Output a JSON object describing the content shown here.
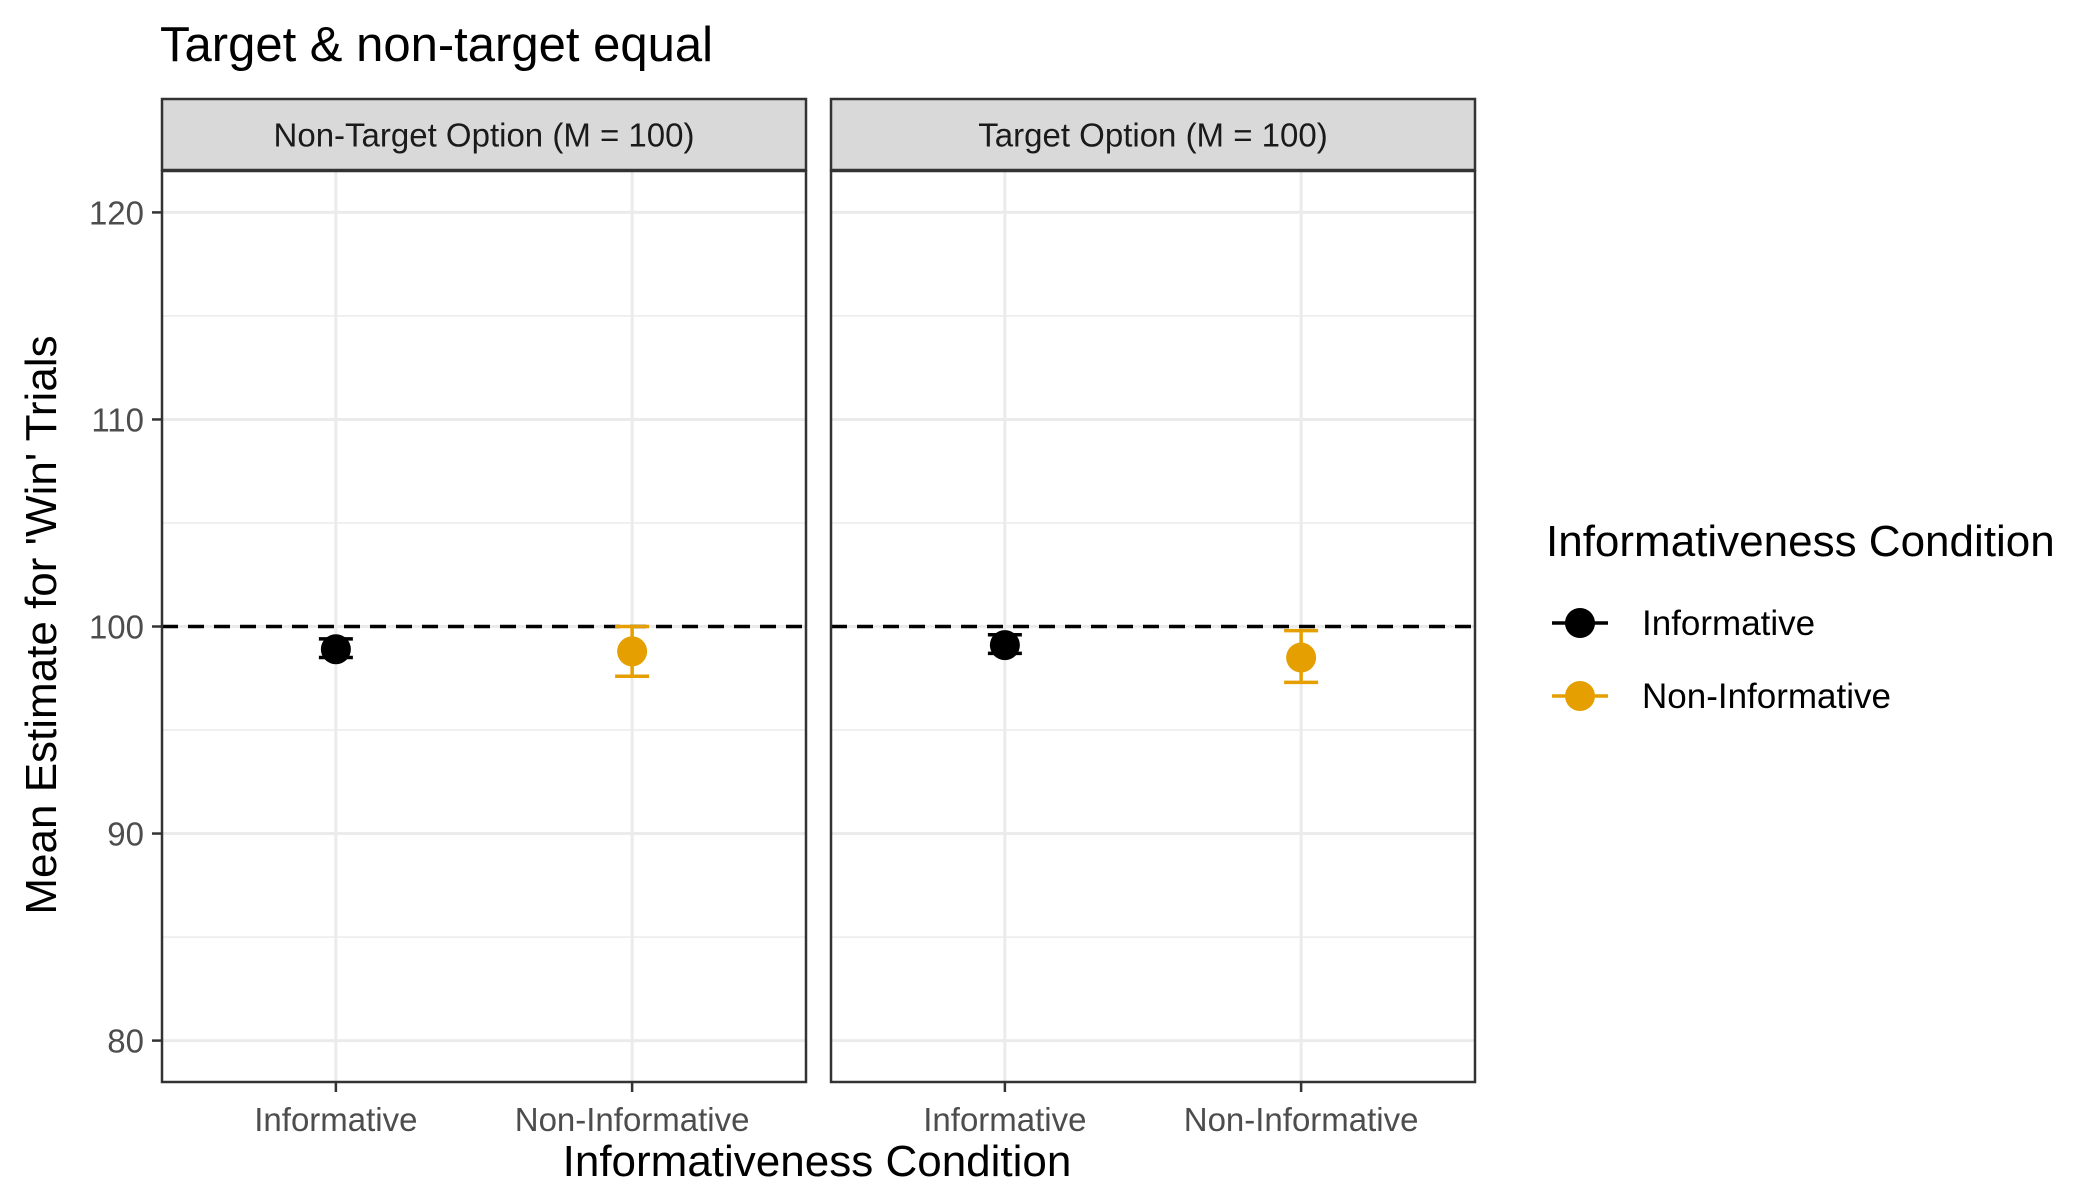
{
  "chart_data": {
    "type": "scatter",
    "title": "Target & non-target equal",
    "xlabel": "Informativeness Condition",
    "ylabel": "Mean Estimate for 'Win' Trials",
    "ylim": [
      78,
      122
    ],
    "yticks": [
      80,
      90,
      100,
      110,
      120
    ],
    "reference_line": 100,
    "categories": [
      "Informative",
      "Non-Informative"
    ],
    "grid": true,
    "legend_placement": "right",
    "legend": {
      "title": "Informativeness Condition",
      "entries": [
        {
          "label": "Informative",
          "color": "#000000"
        },
        {
          "label": "Non-Informative",
          "color": "#E69F00"
        }
      ]
    },
    "panels": [
      {
        "title": "Non-Target Option (M = 100)",
        "points": [
          {
            "x": "Informative",
            "y": 98.9,
            "ymin": 98.5,
            "ymax": 99.4,
            "color": "#000000"
          },
          {
            "x": "Non-Informative",
            "y": 98.8,
            "ymin": 97.6,
            "ymax": 100.0,
            "color": "#E69F00"
          }
        ]
      },
      {
        "title": "Target Option (M = 100)",
        "points": [
          {
            "x": "Informative",
            "y": 99.1,
            "ymin": 98.7,
            "ymax": 99.6,
            "color": "#000000"
          },
          {
            "x": "Non-Informative",
            "y": 98.5,
            "ymin": 97.3,
            "ymax": 99.8,
            "color": "#E69F00"
          }
        ]
      }
    ]
  }
}
